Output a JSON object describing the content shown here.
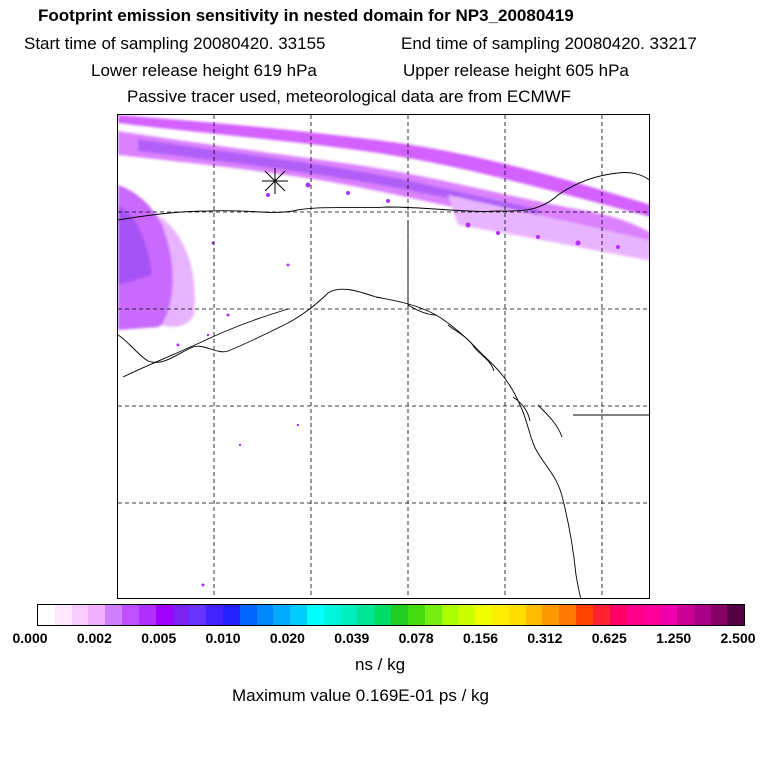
{
  "header": {
    "title": "Footprint emission sensitivity in nested domain for NP3_20080419",
    "start_sampling": "Start time of sampling 20080420. 33155",
    "end_sampling": "End time of sampling 20080420. 33217",
    "lower_release": "Lower release height  619 hPa",
    "upper_release": "Upper release height  605 hPa",
    "tracer_note": "Passive tracer used, meteorological data are from ECMWF"
  },
  "map": {
    "grid": true,
    "release_marker": "star",
    "plume_color": "#cc44ff",
    "plume_core_color": "#7a22ee"
  },
  "colorbar": {
    "colors": [
      "#ffffff",
      "#ffe6ff",
      "#f7ccff",
      "#eeb0ff",
      "#d080ff",
      "#c050ff",
      "#b030ff",
      "#a000ff",
      "#7a22ee",
      "#6633ff",
      "#4422ff",
      "#2222ff",
      "#0066ff",
      "#0088ff",
      "#00aaff",
      "#00ccff",
      "#00ffff",
      "#00f5dd",
      "#00eebb",
      "#00e699",
      "#00dd66",
      "#22cc22",
      "#44dd11",
      "#77ee11",
      "#aaff00",
      "#ccff00",
      "#eeff00",
      "#ffee00",
      "#ffdd00",
      "#ffbb00",
      "#ff9900",
      "#ff7700",
      "#ff4400",
      "#ff2233",
      "#ff0066",
      "#ff0088",
      "#ff0099",
      "#ee00aa",
      "#cc0099",
      "#aa0088",
      "#880066",
      "#550044"
    ],
    "ticks": [
      "0.000",
      "0.002",
      "0.005",
      "0.010",
      "0.020",
      "0.039",
      "0.078",
      "0.156",
      "0.312",
      "0.625",
      "1.250",
      "2.500"
    ],
    "unit": "ns / kg",
    "max_value": "Maximum value  0.169E-01 ps / kg"
  }
}
